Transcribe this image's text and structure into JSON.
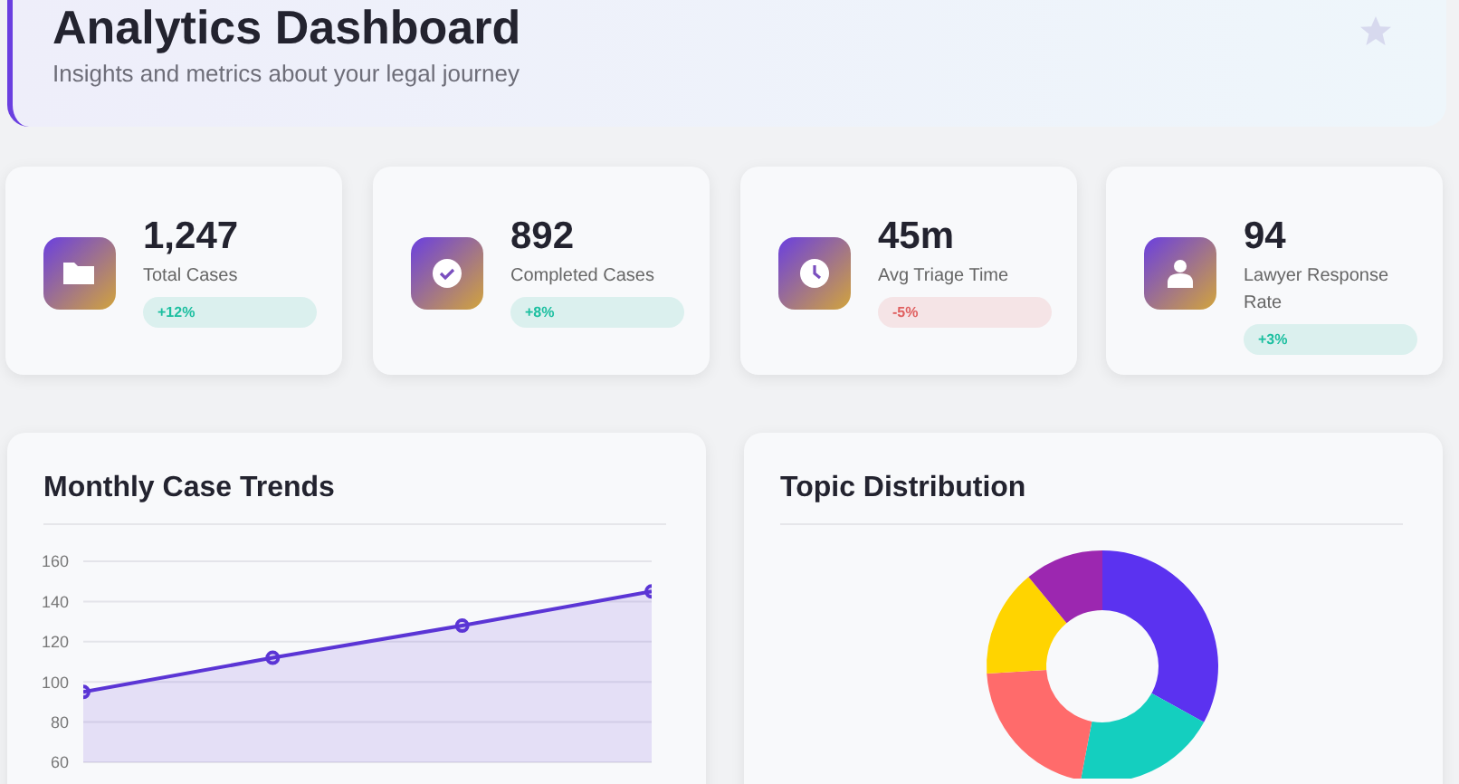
{
  "chart_data": [
    {
      "type": "other",
      "title": "Analytics Dashboard",
      "subtitle": "Insights and metrics about your legal journey"
    },
    {
      "type": "other",
      "title": "1,247",
      "subtitle": "Total Cases",
      "annotations": [
        "+12%"
      ],
      "color": "#1cbfa0"
    },
    {
      "type": "other",
      "title": "892",
      "subtitle": "Completed Cases",
      "annotations": [
        "+8%"
      ],
      "color": "#1cbfa0"
    },
    {
      "type": "other",
      "title": "45m",
      "subtitle": "Avg Triage Time",
      "annotations": [
        "-5%"
      ],
      "color": "#e06060"
    },
    {
      "type": "other",
      "title": "94",
      "subtitle": "Lawyer Response Rate",
      "annotations": [
        "+3%"
      ],
      "color": "#1cbfa0"
    },
    {
      "type": "area",
      "title": "Monthly Case Trends",
      "categories": [
        null,
        null,
        null,
        null
      ],
      "series": [
        {
          "color": "#5b35d5",
          "values": [
            95,
            112,
            128,
            145
          ]
        }
      ],
      "ylim": [
        60,
        160
      ],
      "yticks": [
        60,
        80,
        100,
        120,
        140,
        160
      ],
      "grid": "y",
      "marker": "circle",
      "tick_labels": "y"
    },
    {
      "type": "donut",
      "title": "Topic Distribution",
      "categories": [
        null,
        null,
        null,
        null,
        null
      ],
      "values": [
        33,
        20,
        21,
        15,
        11
      ],
      "colors": [
        "#5b32f0",
        "#14cfbf",
        "#ff6b6b",
        "#ffd400",
        "#9c27b0"
      ],
      "legend": false
    }
  ]
}
